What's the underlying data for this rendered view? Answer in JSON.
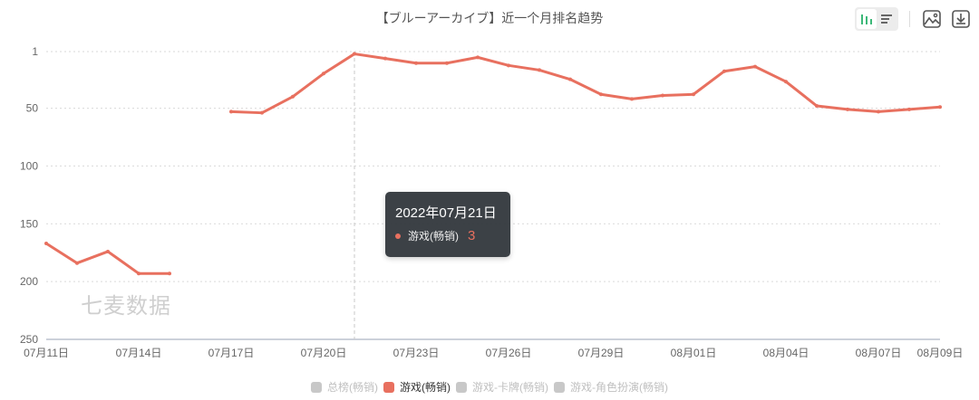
{
  "header": {
    "title": "【ブルーアーカイブ】近一个月排名趋势"
  },
  "toolbar": {
    "view_toggle": [
      {
        "name": "bar-chart-icon",
        "active": true
      },
      {
        "name": "list-icon",
        "active": false
      }
    ],
    "save_image_icon": "image-icon",
    "download_icon": "download-icon"
  },
  "watermark": "七麦数据",
  "tooltip": {
    "date": "2022年07月21日",
    "series": "游戏(畅销)",
    "value": "3"
  },
  "legend": [
    {
      "label": "总榜(畅销)",
      "color": "#c8c8c8",
      "active": false
    },
    {
      "label": "游戏(畅销)",
      "color": "#e8705f",
      "active": true
    },
    {
      "label": "游戏-卡牌(畅销)",
      "color": "#c8c8c8",
      "active": false
    },
    {
      "label": "游戏-角色扮演(畅销)",
      "color": "#c8c8c8",
      "active": false
    }
  ],
  "colors": {
    "series": "#e8705f",
    "axis_text": "#666666",
    "grid": "#d9d9d9",
    "active_toggle": "#3cb878"
  },
  "chart_data": {
    "type": "line",
    "title": "【ブルーアーカイブ】近一个月排名趋势",
    "xlabel": "",
    "ylabel": "",
    "y_inverted": true,
    "ylim": [
      1,
      250
    ],
    "yticks": [
      1,
      50,
      100,
      150,
      200,
      250
    ],
    "grid": true,
    "legend_position": "bottom",
    "xtick_labels": [
      "07月11日",
      "07月14日",
      "07月17日",
      "07月20日",
      "07月23日",
      "07月26日",
      "07月29日",
      "08月01日",
      "08月04日",
      "08月07日",
      "08月09日"
    ],
    "x": [
      "07月11日",
      "07月12日",
      "07月13日",
      "07月14日",
      "07月15日",
      "07月16日",
      "07月17日",
      "07月18日",
      "07月19日",
      "07月20日",
      "07月21日",
      "07月22日",
      "07月23日",
      "07月24日",
      "07月25日",
      "07月26日",
      "07月27日",
      "07月28日",
      "07月29日",
      "07月30日",
      "07月31日",
      "08月01日",
      "08月02日",
      "08月03日",
      "08月04日",
      "08月05日",
      "08月06日",
      "08月07日",
      "08月08日",
      "08月09日"
    ],
    "series": [
      {
        "name": "游戏(畅销)",
        "values": [
          167,
          184,
          174,
          193,
          193,
          null,
          53,
          54,
          40,
          20,
          3,
          7,
          11,
          11,
          6,
          13,
          17,
          25,
          38,
          42,
          39,
          38,
          18,
          14,
          27,
          48,
          51,
          53,
          51,
          49
        ]
      },
      {
        "name": "总榜(畅销)",
        "values": [],
        "hidden": true
      },
      {
        "name": "游戏-卡牌(畅销)",
        "values": [],
        "hidden": true
      },
      {
        "name": "游戏-角色扮演(畅销)",
        "values": [],
        "hidden": true
      }
    ],
    "highlight": {
      "x": "07月21日",
      "value": 3
    }
  }
}
